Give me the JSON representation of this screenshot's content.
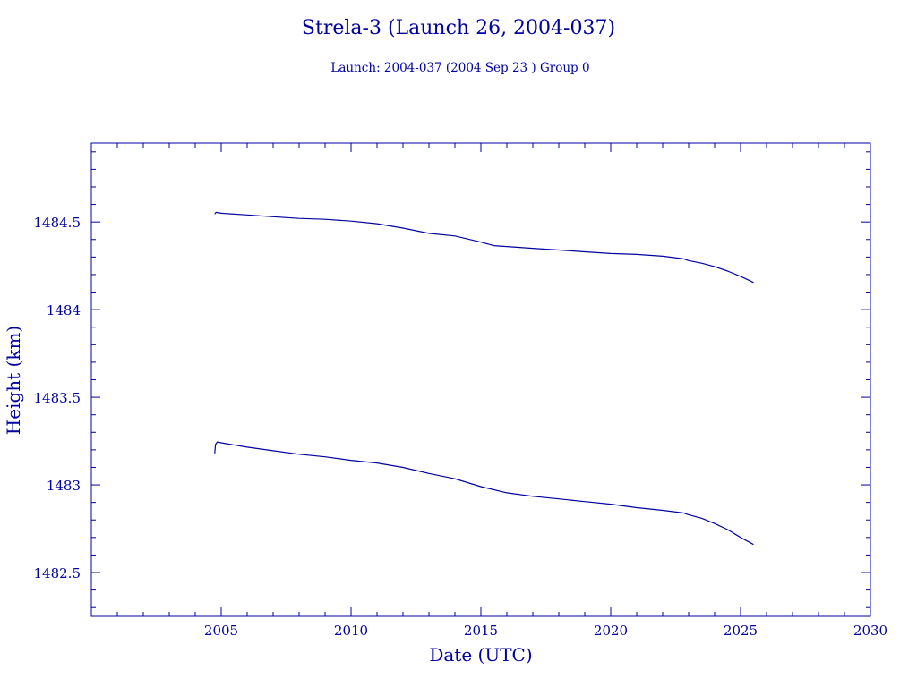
{
  "colors": {
    "ink": "#0000a0",
    "background": "#ffffff"
  },
  "chart_data": {
    "type": "line",
    "title": "Strela-3 (Launch 26, 2004-037)",
    "subtitle": "Launch: 2004-037  (2004 Sep 23 )  Group 0",
    "xlabel": "Date (UTC)",
    "ylabel": "Height (km)",
    "xlim": [
      2000,
      2030
    ],
    "ylim": [
      1482.25,
      1484.95
    ],
    "x_ticks": [
      2005,
      2010,
      2015,
      2020,
      2025,
      2030
    ],
    "x_tick_labels": [
      "2005",
      "2010",
      "2015",
      "2020",
      "2025",
      "2030"
    ],
    "y_ticks": [
      1482.5,
      1483,
      1483.5,
      1484,
      1484.5
    ],
    "y_tick_labels": [
      "1482.5",
      "1483",
      "1483.5",
      "1484",
      "1484.5"
    ],
    "grid": false,
    "series": [
      {
        "x": [
          2004.75,
          2004.8,
          2005.0,
          2006.0,
          2007.0,
          2008.0,
          2009.0,
          2010.0,
          2011.0,
          2012.0,
          2013.0,
          2014.0,
          2015.0,
          2015.5,
          2016.0,
          2017.0,
          2018.0,
          2019.0,
          2020.0,
          2021.0,
          2022.0,
          2022.8,
          2023.0,
          2023.5,
          2024.0,
          2024.5,
          2025.0,
          2025.5
        ],
        "y": [
          1484.545,
          1484.555,
          1484.55,
          1484.54,
          1484.53,
          1484.52,
          1484.515,
          1484.505,
          1484.49,
          1484.465,
          1484.435,
          1484.42,
          1484.385,
          1484.365,
          1484.36,
          1484.35,
          1484.34,
          1484.33,
          1484.32,
          1484.315,
          1484.305,
          1484.29,
          1484.28,
          1484.265,
          1484.245,
          1484.22,
          1484.19,
          1484.155
        ]
      },
      {
        "x": [
          2004.75,
          2004.78,
          2004.85,
          2005.0,
          2006.0,
          2007.0,
          2008.0,
          2009.0,
          2010.0,
          2011.0,
          2012.0,
          2013.0,
          2014.0,
          2015.0,
          2016.0,
          2017.0,
          2018.0,
          2019.0,
          2020.0,
          2021.0,
          2022.0,
          2022.8,
          2023.0,
          2023.5,
          2024.0,
          2024.5,
          2025.0,
          2025.5
        ],
        "y": [
          1483.18,
          1483.23,
          1483.245,
          1483.24,
          1483.215,
          1483.195,
          1483.175,
          1483.16,
          1483.14,
          1483.125,
          1483.1,
          1483.065,
          1483.035,
          1482.99,
          1482.955,
          1482.935,
          1482.92,
          1482.905,
          1482.89,
          1482.87,
          1482.855,
          1482.84,
          1482.83,
          1482.81,
          1482.78,
          1482.745,
          1482.7,
          1482.66
        ]
      }
    ]
  }
}
